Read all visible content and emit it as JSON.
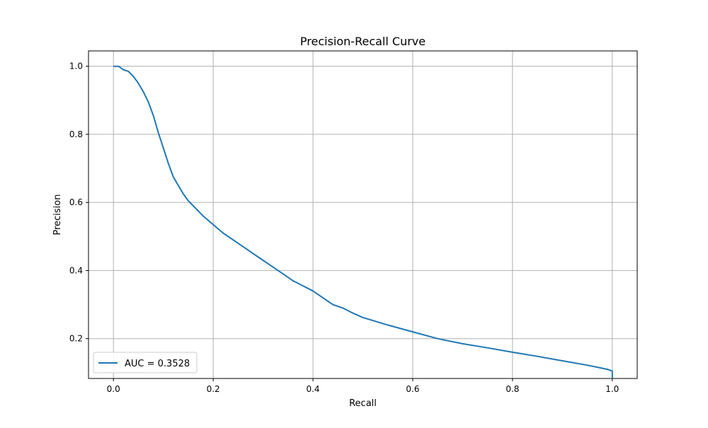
{
  "chart_data": {
    "type": "line",
    "title": "Precision-Recall Curve",
    "xlabel": "Recall",
    "ylabel": "Precision",
    "xlim": [
      -0.05,
      1.05
    ],
    "ylim": [
      0.083,
      1.045
    ],
    "xticks": [
      0.0,
      0.2,
      0.4,
      0.6,
      0.8,
      1.0
    ],
    "xtick_labels": [
      "0.0",
      "0.2",
      "0.4",
      "0.6",
      "0.8",
      "1.0"
    ],
    "yticks": [
      0.2,
      0.4,
      0.6,
      0.8,
      1.0
    ],
    "ytick_labels": [
      "0.2",
      "0.4",
      "0.6",
      "0.8",
      "1.0"
    ],
    "grid": true,
    "legend_position": "lower-left",
    "series": [
      {
        "name": "AUC = 0.3528",
        "color": "#1f77b4",
        "x": [
          0.0,
          0.01,
          0.015,
          0.02,
          0.03,
          0.04,
          0.05,
          0.06,
          0.07,
          0.08,
          0.09,
          0.1,
          0.11,
          0.12,
          0.13,
          0.14,
          0.15,
          0.16,
          0.17,
          0.18,
          0.2,
          0.22,
          0.24,
          0.26,
          0.28,
          0.3,
          0.32,
          0.34,
          0.36,
          0.38,
          0.4,
          0.42,
          0.44,
          0.46,
          0.48,
          0.5,
          0.55,
          0.6,
          0.65,
          0.7,
          0.75,
          0.8,
          0.85,
          0.9,
          0.95,
          0.99,
          1.0,
          1.0
        ],
        "y": [
          1.0,
          1.0,
          0.995,
          0.99,
          0.985,
          0.97,
          0.95,
          0.925,
          0.895,
          0.855,
          0.805,
          0.76,
          0.715,
          0.675,
          0.65,
          0.625,
          0.605,
          0.59,
          0.575,
          0.56,
          0.535,
          0.51,
          0.49,
          0.47,
          0.45,
          0.43,
          0.41,
          0.39,
          0.37,
          0.355,
          0.34,
          0.32,
          0.3,
          0.29,
          0.275,
          0.262,
          0.24,
          0.22,
          0.2,
          0.185,
          0.173,
          0.16,
          0.148,
          0.135,
          0.122,
          0.11,
          0.105,
          0.085
        ]
      }
    ]
  }
}
